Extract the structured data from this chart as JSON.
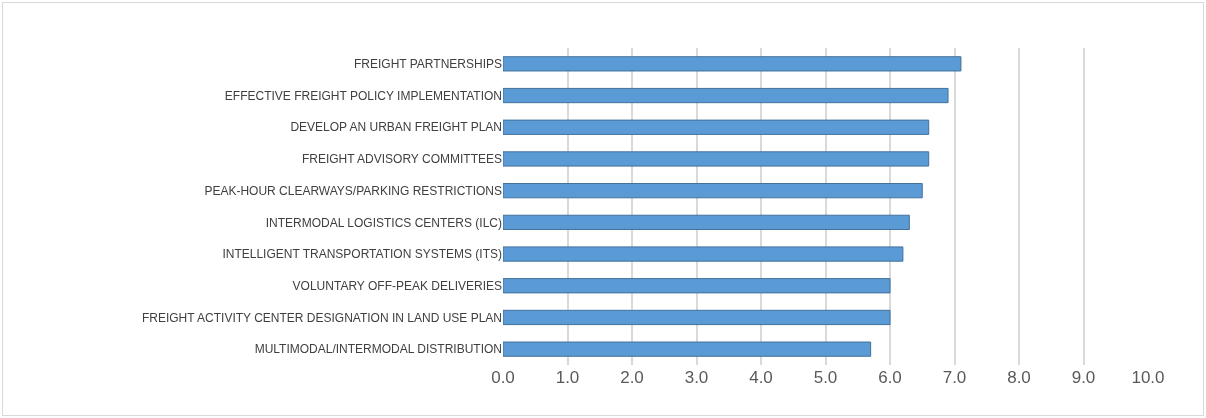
{
  "chart_data": {
    "type": "bar",
    "orientation": "horizontal",
    "categories": [
      "FREIGHT PARTNERSHIPS",
      "EFFECTIVE FREIGHT POLICY IMPLEMENTATION",
      "DEVELOP AN URBAN FREIGHT PLAN",
      "FREIGHT ADVISORY COMMITTEES",
      "PEAK-HOUR CLEARWAYS/PARKING RESTRICTIONS",
      "INTERMODAL LOGISTICS CENTERS (ILC)",
      "INTELLIGENT TRANSPORTATION SYSTEMS (ITS)",
      "VOLUNTARY OFF-PEAK DELIVERIES",
      "FREIGHT ACTIVITY CENTER DESIGNATION IN LAND USE PLAN",
      "MULTIMODAL/INTERMODAL DISTRIBUTION"
    ],
    "values": [
      7.1,
      6.9,
      6.6,
      6.6,
      6.5,
      6.3,
      6.2,
      6.0,
      6.0,
      5.7
    ],
    "color": "#5b9bd5",
    "xlim": [
      0,
      10
    ],
    "xticks": [
      {
        "value": 0,
        "label": "0.0"
      },
      {
        "value": 1,
        "label": "1.0"
      },
      {
        "value": 2,
        "label": "2.0"
      },
      {
        "value": 3,
        "label": "3.0"
      },
      {
        "value": 4,
        "label": "4.0"
      },
      {
        "value": 5,
        "label": "5.0"
      },
      {
        "value": 6,
        "label": "6.0"
      },
      {
        "value": 7,
        "label": "7.0"
      },
      {
        "value": 8,
        "label": "8.0"
      },
      {
        "value": 9,
        "label": "9.0"
      },
      {
        "value": 10,
        "label": "10.0"
      }
    ],
    "grid": "x"
  }
}
